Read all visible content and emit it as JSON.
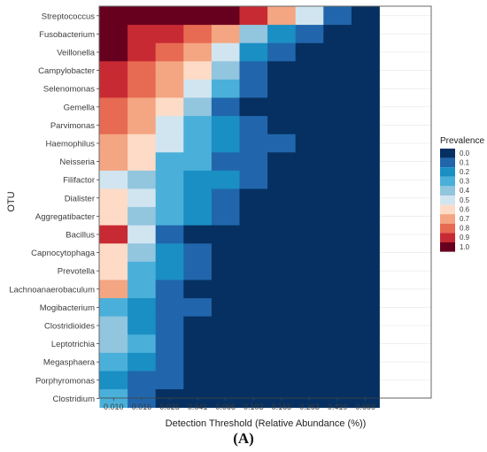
{
  "chart_data": {
    "type": "heatmap",
    "title": "",
    "xlabel": "Detection Threshold (Relative Abundance (%))",
    "ylabel": "OTU",
    "x_categories": [
      "0.010",
      "0.016",
      "0.025",
      "0.041",
      "0.065",
      "0.103",
      "0.165",
      "0.263",
      "0.419",
      "0.669"
    ],
    "y_categories": [
      "Streptococcus",
      "Fusobacterium",
      "Veillonella",
      "Campylobacter",
      "Selenomonas",
      "Gemella",
      "Parvimonas",
      "Haemophilus",
      "Neisseria",
      "Filifactor",
      "Dialister",
      "Aggregatibacter",
      "Bacillus",
      "Capnocytophaga",
      "Prevotella",
      "Lachnoanaerobaculum",
      "Mogibacterium",
      "Clostridioides",
      "Leptotrichia",
      "Megasphaera",
      "Porphyromonas",
      "Clostridium"
    ],
    "values": [
      [
        1.0,
        1.0,
        1.0,
        1.0,
        0.95,
        0.85,
        0.65,
        0.45,
        0.1,
        0.0
      ],
      [
        0.95,
        0.9,
        0.85,
        0.8,
        0.65,
        0.4,
        0.15,
        0.05,
        0.0,
        0.0
      ],
      [
        0.95,
        0.9,
        0.8,
        0.7,
        0.45,
        0.2,
        0.1,
        0.02,
        0.0,
        0.0
      ],
      [
        0.9,
        0.8,
        0.7,
        0.55,
        0.35,
        0.1,
        0.02,
        0.0,
        0.0,
        0.0
      ],
      [
        0.9,
        0.8,
        0.7,
        0.5,
        0.3,
        0.05,
        0.02,
        0.0,
        0.0,
        0.0
      ],
      [
        0.8,
        0.7,
        0.55,
        0.35,
        0.1,
        0.02,
        0.0,
        0.0,
        0.0,
        0.0
      ],
      [
        0.8,
        0.65,
        0.45,
        0.3,
        0.15,
        0.05,
        0.02,
        0.0,
        0.0,
        0.0
      ],
      [
        0.65,
        0.55,
        0.45,
        0.25,
        0.2,
        0.1,
        0.05,
        0.02,
        0.0,
        0.0
      ],
      [
        0.65,
        0.55,
        0.3,
        0.25,
        0.1,
        0.05,
        0.02,
        0.0,
        0.0,
        0.0
      ],
      [
        0.5,
        0.35,
        0.25,
        0.2,
        0.15,
        0.05,
        0.02,
        0.0,
        0.0,
        0.0
      ],
      [
        0.6,
        0.45,
        0.3,
        0.2,
        0.05,
        0.02,
        0.0,
        0.0,
        0.0,
        0.0
      ],
      [
        0.55,
        0.35,
        0.25,
        0.15,
        0.05,
        0.02,
        0.0,
        0.0,
        0.0,
        0.0
      ],
      [
        0.9,
        0.5,
        0.05,
        0.02,
        0.0,
        0.0,
        0.0,
        0.0,
        0.0,
        0.0
      ],
      [
        0.6,
        0.35,
        0.2,
        0.1,
        0.02,
        0.0,
        0.0,
        0.0,
        0.0,
        0.0
      ],
      [
        0.55,
        0.3,
        0.2,
        0.05,
        0.02,
        0.0,
        0.0,
        0.0,
        0.0,
        0.0
      ],
      [
        0.65,
        0.3,
        0.05,
        0.02,
        0.0,
        0.0,
        0.0,
        0.0,
        0.0,
        0.0
      ],
      [
        0.3,
        0.2,
        0.1,
        0.05,
        0.02,
        0.0,
        0.0,
        0.0,
        0.0,
        0.0
      ],
      [
        0.35,
        0.2,
        0.05,
        0.02,
        0.0,
        0.0,
        0.0,
        0.0,
        0.0,
        0.0
      ],
      [
        0.35,
        0.25,
        0.05,
        0.0,
        0.0,
        0.0,
        0.0,
        0.0,
        0.0,
        0.0
      ],
      [
        0.25,
        0.15,
        0.05,
        0.0,
        0.0,
        0.0,
        0.0,
        0.0,
        0.0,
        0.0
      ],
      [
        0.2,
        0.1,
        0.05,
        0.02,
        0.0,
        0.0,
        0.0,
        0.0,
        0.0,
        0.0
      ],
      [
        0.3,
        0.05,
        0.0,
        0.0,
        0.0,
        0.0,
        0.0,
        0.0,
        0.0,
        0.0
      ]
    ],
    "value_range": [
      0,
      1
    ],
    "legend": {
      "title": "Prevalence",
      "placement": "right",
      "labels": [
        "0.0",
        "0.1",
        "0.2",
        "0.3",
        "0.4",
        "0.5",
        "0.6",
        "0.7",
        "0.8",
        "0.9",
        "1.0"
      ],
      "colors": [
        "#053061",
        "#2166ac",
        "#1a8fc4",
        "#4ab0d9",
        "#92c5de",
        "#d1e5f0",
        "#fddbc7",
        "#f4a582",
        "#e76a52",
        "#c82a33",
        "#67001f"
      ]
    },
    "grid": true
  },
  "panel_label": "(A)"
}
